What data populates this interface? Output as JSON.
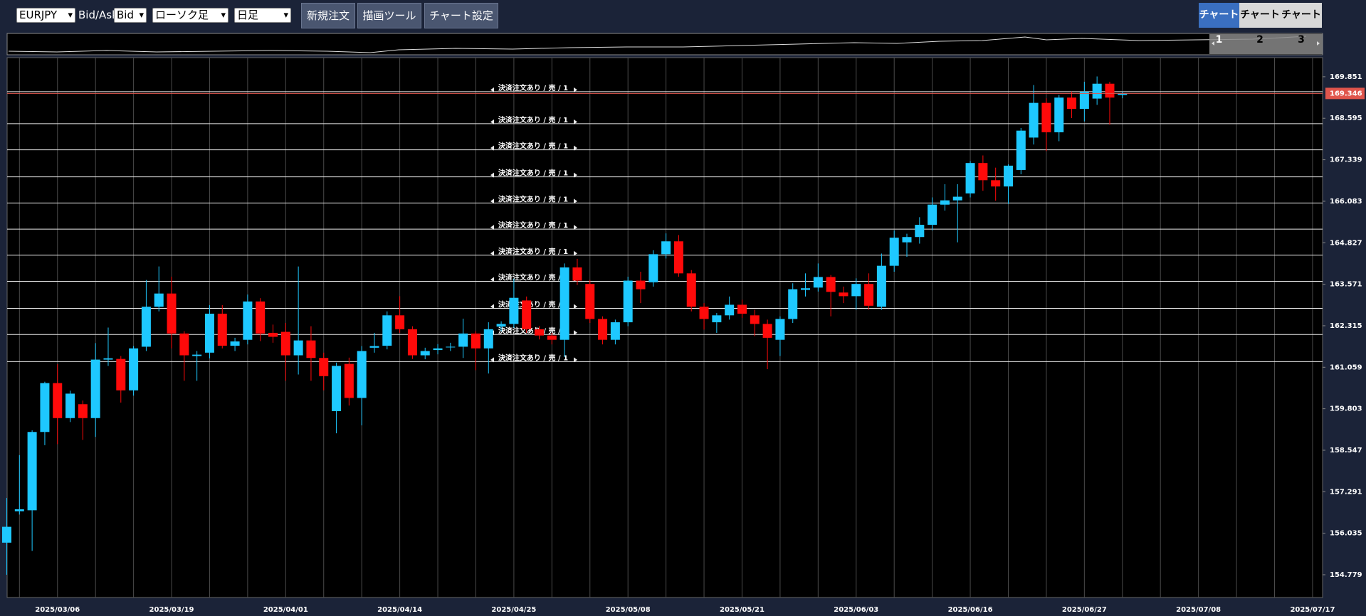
{
  "toolbar": {
    "symbol": "EURJPY",
    "bid_ask_label": "Bid/Ask",
    "price_type": "Bid",
    "chart_style": "ローソク足",
    "timeframe": "日足",
    "buttons": [
      "新規注文",
      "描画ツール",
      "チャート設定"
    ],
    "tabs": [
      "チャート1",
      "チャート2",
      "チャート3"
    ]
  },
  "chart_data": {
    "type": "candlestick",
    "categories": [
      null,
      null,
      null,
      null,
      "2025/03/06",
      null,
      null,
      null,
      null,
      null,
      null,
      null,
      null,
      "2025/03/19",
      null,
      null,
      null,
      null,
      null,
      null,
      null,
      null,
      "2025/04/01",
      null,
      null,
      null,
      null,
      null,
      null,
      null,
      null,
      "2025/04/14",
      null,
      null,
      null,
      null,
      null,
      null,
      null,
      null,
      "2025/04/25",
      null,
      null,
      null,
      null,
      null,
      null,
      null,
      null,
      "2025/05/08",
      null,
      null,
      null,
      null,
      null,
      null,
      null,
      null,
      "2025/05/21",
      null,
      null,
      null,
      null,
      null,
      null,
      null,
      null,
      "2025/06/03",
      null,
      null,
      null,
      null,
      null,
      null,
      null,
      null,
      "2025/06/16",
      null,
      null,
      null,
      null,
      null,
      null,
      null,
      null,
      "2025/06/27",
      null,
      null,
      null,
      null,
      null,
      null,
      null,
      null,
      "2025/07/08",
      null,
      null,
      null,
      null,
      null,
      null,
      null,
      null,
      "2025/07/17"
    ],
    "open": [
      155.75,
      156.7,
      156.73,
      159.1,
      160.58,
      159.52,
      159.94,
      159.52,
      161.29,
      161.31,
      160.36,
      161.68,
      162.89,
      163.29,
      162.08,
      161.4,
      161.5,
      162.68,
      161.71,
      161.89,
      163.05,
      162.1,
      162.13,
      161.42,
      161.87,
      161.34,
      159.73,
      161.16,
      160.13,
      161.65,
      161.71,
      162.63,
      162.21,
      161.42,
      161.58,
      161.66,
      161.68,
      162.08,
      161.63,
      162.29,
      162.37,
      163.08,
      162.21,
      162.02,
      161.89,
      164.08,
      163.58,
      162.52,
      161.89,
      162.42,
      163.68,
      163.63,
      164.48,
      164.87,
      163.9,
      162.89,
      162.42,
      162.63,
      162.95,
      162.63,
      162.37,
      161.89,
      162.52,
      163.4,
      163.47,
      163.79,
      163.32,
      163.21,
      163.58,
      162.89,
      164.13,
      164.84,
      165.0,
      165.37,
      165.98,
      166.11,
      166.32,
      167.24,
      166.72,
      166.53,
      167.03,
      168.01,
      169.06,
      168.17,
      169.22,
      168.88,
      169.19,
      169.64,
      169.3,
      null,
      null,
      null,
      null,
      null,
      null,
      null,
      null,
      null,
      null,
      null,
      null,
      null,
      null,
      null
    ],
    "high": [
      157.1,
      158.4,
      159.15,
      160.62,
      161.15,
      160.35,
      160.05,
      161.79,
      162.26,
      161.4,
      161.7,
      163.7,
      164.11,
      163.8,
      162.15,
      161.55,
      162.94,
      162.94,
      161.95,
      163.26,
      163.15,
      162.35,
      162.4,
      164.11,
      162.3,
      161.5,
      161.2,
      161.35,
      161.7,
      162.1,
      162.75,
      163.21,
      162.3,
      161.65,
      161.76,
      161.8,
      162.53,
      162.15,
      162.42,
      162.45,
      163.74,
      163.2,
      162.3,
      162.1,
      164.2,
      164.34,
      163.7,
      162.6,
      162.5,
      163.8,
      163.95,
      164.6,
      165.11,
      165.06,
      164.0,
      163.0,
      162.7,
      163.2,
      163.1,
      162.8,
      162.5,
      162.6,
      163.6,
      163.9,
      164.2,
      163.85,
      163.5,
      163.75,
      163.9,
      164.5,
      165.2,
      165.1,
      165.6,
      166.2,
      166.6,
      166.6,
      167.3,
      167.47,
      167.1,
      167.2,
      168.3,
      169.6,
      169.2,
      169.3,
      169.4,
      169.7,
      169.86,
      169.7,
      169.4,
      null,
      null,
      null,
      null,
      null,
      null,
      null,
      null,
      null,
      null,
      null,
      null,
      null,
      null,
      null
    ],
    "low": [
      154.78,
      156.6,
      155.5,
      158.7,
      158.73,
      159.4,
      158.86,
      158.95,
      161.1,
      159.99,
      160.2,
      161.55,
      162.75,
      161.63,
      160.65,
      160.65,
      161.33,
      161.63,
      161.55,
      161.75,
      161.85,
      161.8,
      160.65,
      160.84,
      160.65,
      160.36,
      159.06,
      159.9,
      159.3,
      161.5,
      161.6,
      162.1,
      161.31,
      161.3,
      161.45,
      161.55,
      161.34,
      160.97,
      160.87,
      162.15,
      162.25,
      162.1,
      161.9,
      161.75,
      161.37,
      163.55,
      162.4,
      161.75,
      161.75,
      162.3,
      163.0,
      163.5,
      164.35,
      163.8,
      162.75,
      162.2,
      162.1,
      162.5,
      162.55,
      162.0,
      161.0,
      161.4,
      162.4,
      163.2,
      163.35,
      162.6,
      163.0,
      162.8,
      162.8,
      162.8,
      163.95,
      164.4,
      164.8,
      165.2,
      165.8,
      164.84,
      166.2,
      166.4,
      166.1,
      166.0,
      166.9,
      167.8,
      167.6,
      167.9,
      168.6,
      168.5,
      169.0,
      168.4,
      169.2,
      null,
      null,
      null,
      null,
      null,
      null,
      null,
      null,
      null,
      null,
      null,
      null,
      null,
      null,
      null
    ],
    "close": [
      156.23,
      156.76,
      159.1,
      160.58,
      159.52,
      160.26,
      159.52,
      161.29,
      161.33,
      160.36,
      161.63,
      162.89,
      163.29,
      162.08,
      161.42,
      161.44,
      162.68,
      161.71,
      161.84,
      163.05,
      162.08,
      161.98,
      161.42,
      161.87,
      161.34,
      160.79,
      161.1,
      160.13,
      161.55,
      161.7,
      162.63,
      162.21,
      161.42,
      161.55,
      161.63,
      161.68,
      162.08,
      161.63,
      162.21,
      162.37,
      163.16,
      162.21,
      162.02,
      161.89,
      164.08,
      163.68,
      162.52,
      161.89,
      162.42,
      163.68,
      163.42,
      164.48,
      164.87,
      163.9,
      162.89,
      162.52,
      162.63,
      162.95,
      162.68,
      162.37,
      161.95,
      162.52,
      163.42,
      163.45,
      163.79,
      163.34,
      163.21,
      163.58,
      162.92,
      164.13,
      164.98,
      165.0,
      165.37,
      165.98,
      166.11,
      166.22,
      167.24,
      166.72,
      166.53,
      167.16,
      168.22,
      169.06,
      168.17,
      169.22,
      168.88,
      169.4,
      169.64,
      169.22,
      169.346,
      null,
      null,
      null,
      null,
      null,
      null,
      null,
      null,
      null,
      null,
      null,
      null,
      null,
      null,
      null
    ],
    "up_color": "#1ec8ff",
    "down_color": "#ff0a0a",
    "ylim": [
      154.09,
      170.43
    ],
    "yticks": [
      154.779,
      156.035,
      157.291,
      158.547,
      159.803,
      161.059,
      162.315,
      163.571,
      164.827,
      166.083,
      167.339,
      168.595,
      169.851
    ],
    "grid": true,
    "order_lines": [
      {
        "price": 169.4,
        "label": "決済注文あり / 売 / 1"
      },
      {
        "price": 168.43,
        "label": "決済注文あり / 売 / 1"
      },
      {
        "price": 167.64,
        "label": "決済注文あり / 売 / 1"
      },
      {
        "price": 166.82,
        "label": "決済注文あり / 売 / 1"
      },
      {
        "price": 166.03,
        "label": "決済注文あり / 売 / 1"
      },
      {
        "price": 165.24,
        "label": "決済注文あり / 売 / 1"
      },
      {
        "price": 164.45,
        "label": "決済注文あり / 売 / 1"
      },
      {
        "price": 163.66,
        "label": "決済注文あり / 売 / 1"
      },
      {
        "price": 162.84,
        "label": "決済注文あり / 売 / 1"
      },
      {
        "price": 162.05,
        "label": "決済注文あり / 売 / 1"
      },
      {
        "price": 161.23,
        "label": "決済注文あり / 売 / 1"
      }
    ],
    "order_line_color": "#e8e8e8",
    "current_price": 169.346,
    "current_price_color": "#e0554c"
  }
}
